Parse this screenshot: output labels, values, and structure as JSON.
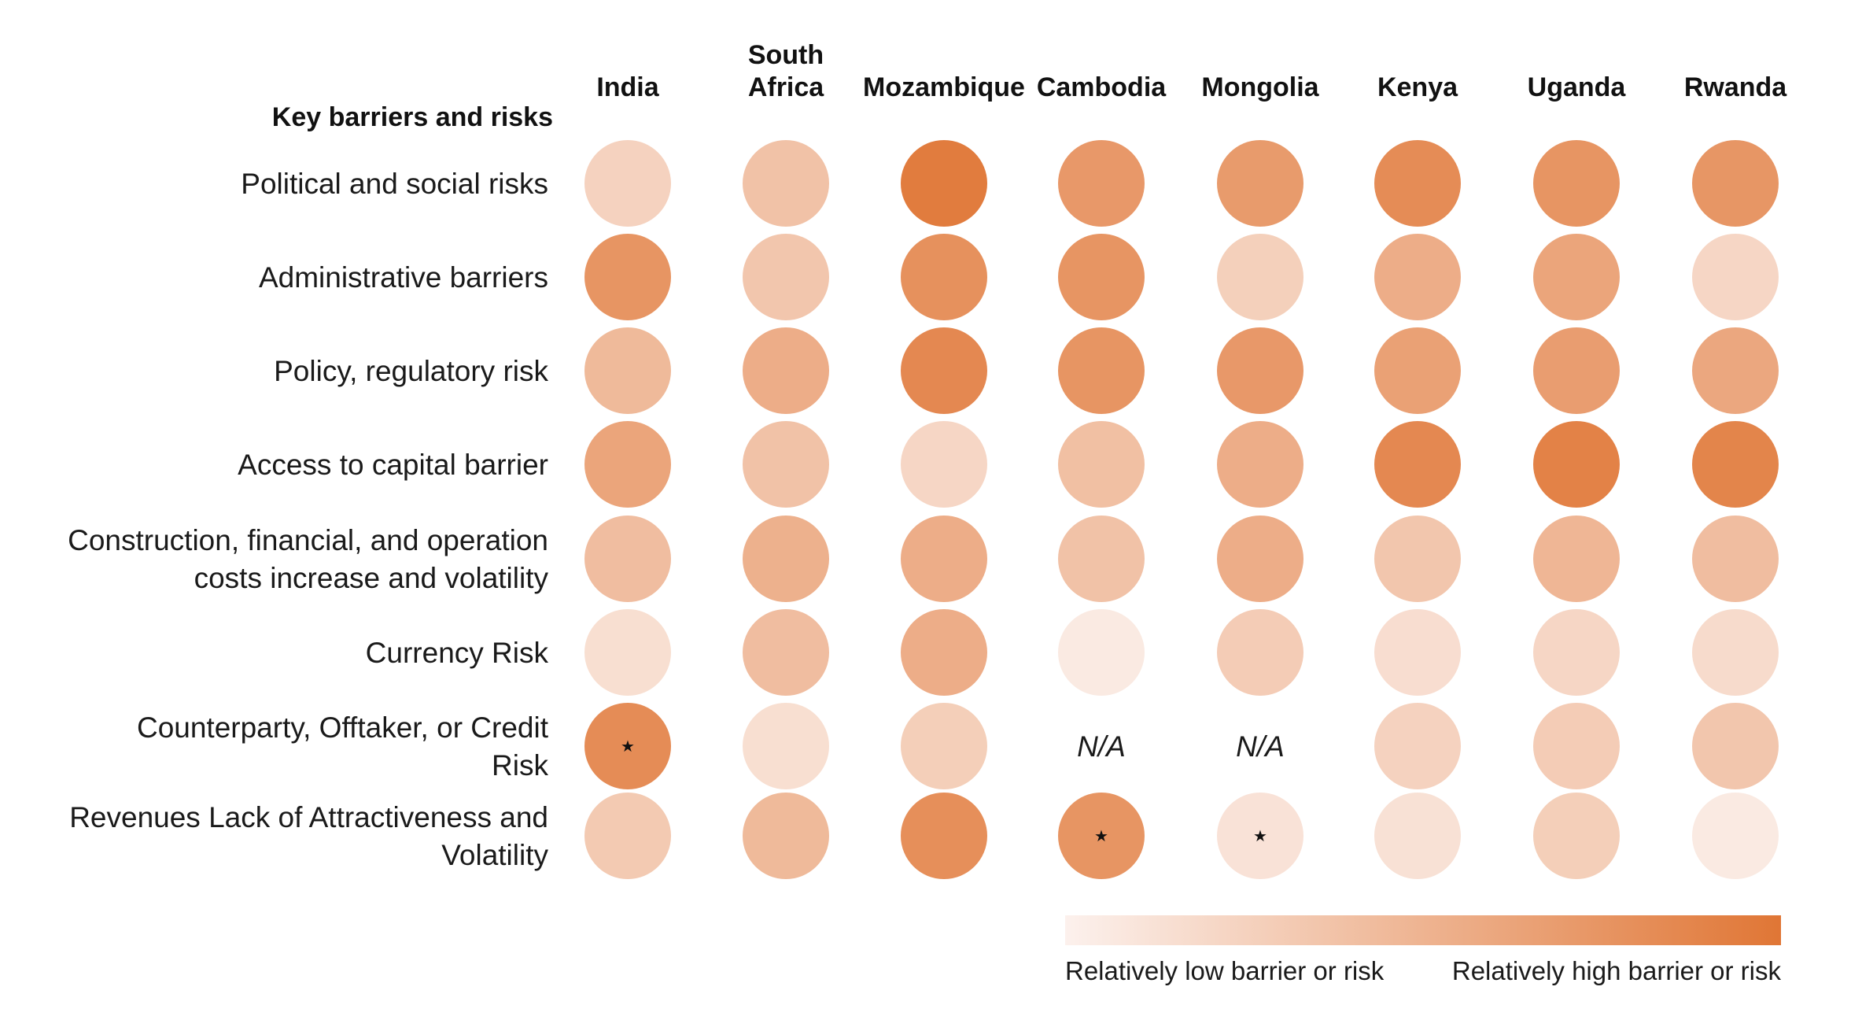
{
  "chart_data": {
    "type": "heatmap",
    "title": "",
    "row_header": "Key barriers and risks",
    "columns": [
      [
        "India"
      ],
      [
        "South",
        "Africa"
      ],
      [
        "Mozambique"
      ],
      [
        "Cambodia"
      ],
      [
        "Mongolia"
      ],
      [
        "Kenya"
      ],
      [
        "Uganda"
      ],
      [
        "Rwanda"
      ]
    ],
    "rows": [
      [
        "Political and social risks"
      ],
      [
        "Administrative barriers"
      ],
      [
        "Policy, regulatory risk"
      ],
      [
        "Access to capital barrier"
      ],
      [
        "Construction, financial, and operation",
        "costs increase and volatility"
      ],
      [
        "Currency Risk"
      ],
      [
        "Counterparty, Offtaker, or Credit",
        "Risk"
      ],
      [
        "Revenues Lack of Attractiveness and",
        "Volatility"
      ]
    ],
    "scale": [
      0,
      1
    ],
    "values": [
      [
        0.25,
        0.38,
        0.95,
        0.72,
        0.7,
        0.82,
        0.75,
        0.74
      ],
      [
        0.75,
        0.35,
        0.78,
        0.75,
        0.27,
        0.55,
        0.62,
        0.22
      ],
      [
        0.45,
        0.55,
        0.85,
        0.75,
        0.72,
        0.65,
        0.68,
        0.6
      ],
      [
        0.62,
        0.38,
        0.22,
        0.4,
        0.55,
        0.85,
        0.9,
        0.88
      ],
      [
        0.42,
        0.52,
        0.55,
        0.38,
        0.55,
        0.35,
        0.48,
        0.42
      ],
      [
        0.15,
        0.42,
        0.55,
        0.06,
        0.3,
        0.16,
        0.22,
        0.18
      ],
      [
        0.82,
        0.15,
        0.28,
        null,
        null,
        0.25,
        0.3,
        0.35
      ],
      [
        0.32,
        0.45,
        0.8,
        0.75,
        0.12,
        0.13,
        0.28,
        0.06
      ]
    ],
    "na_label": "N/A",
    "starred": [
      [
        6,
        0
      ],
      [
        7,
        3
      ],
      [
        7,
        4
      ]
    ],
    "star_symbol": "★",
    "legend": {
      "low_label": "Relatively low barrier or risk",
      "high_label": "Relatively high barrier or risk"
    },
    "colors": {
      "low": "#fcf1ed",
      "high": "#e07635"
    }
  }
}
